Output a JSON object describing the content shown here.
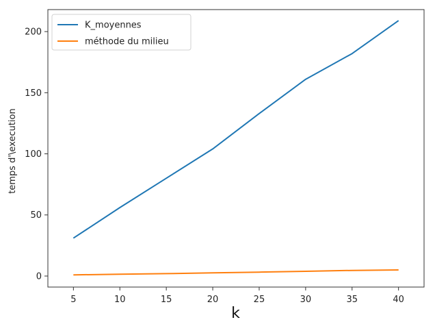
{
  "chart_data": {
    "type": "line",
    "title": "",
    "xlabel": "k",
    "ylabel": "temps d'\\execution",
    "x": [
      5,
      10,
      15,
      20,
      25,
      30,
      35,
      40
    ],
    "xticks": [
      "5",
      "10",
      "15",
      "20",
      "25",
      "30",
      "35",
      "40"
    ],
    "yticks": [
      "0",
      "50",
      "100",
      "150",
      "200"
    ],
    "xlim": [
      2.25,
      42.75
    ],
    "ylim": [
      -9,
      218
    ],
    "grid": false,
    "legend_position": "top-left",
    "series": [
      {
        "name": "K_moyennes",
        "color": "#1f77b4",
        "values": [
          31,
          56,
          80,
          104,
          133,
          161,
          182,
          209
        ]
      },
      {
        "name": "méthode du milieu",
        "color": "#ff7f0e",
        "values": [
          1,
          1.5,
          2,
          2.6,
          3.2,
          3.9,
          4.6,
          5
        ]
      }
    ]
  }
}
